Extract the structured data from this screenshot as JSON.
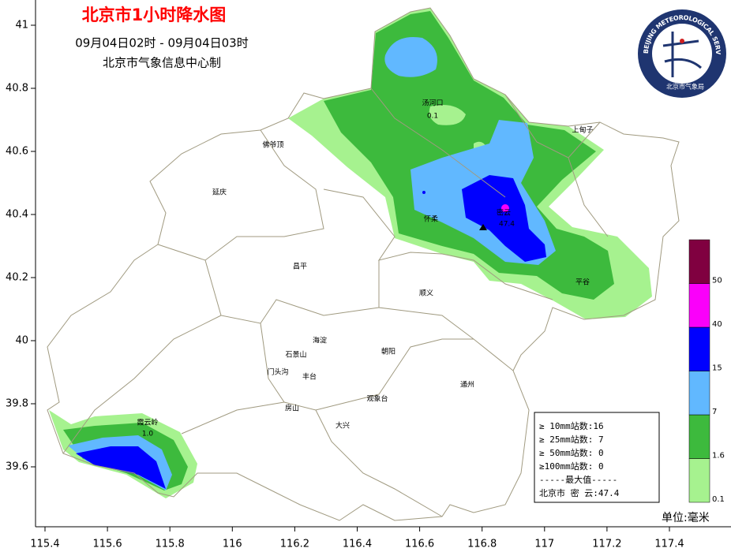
{
  "header": {
    "title": "北京市1小时降水图",
    "time_range": "09月04日02时 - 09月04日03时",
    "producer": "北京市气象信息中心制"
  },
  "logo": {
    "ring_text": "BEIJING METEOROLOGICAL SERVICE",
    "name": "北京市气象局"
  },
  "axes": {
    "lat_ticks": [
      41,
      40.8,
      40.6,
      40.4,
      40.2,
      40,
      39.8,
      39.6
    ],
    "lon_ticks": [
      115.4,
      115.6,
      115.8,
      116,
      116.2,
      116.4,
      116.6,
      116.8,
      117,
      117.2,
      117.4
    ]
  },
  "places": [
    "汤河口",
    "上甸子",
    "佛爷顶",
    "延庆",
    "怀柔",
    "密云",
    "昌平",
    "顺义",
    "平谷",
    "霞云岭",
    "海淀",
    "石景山",
    "门头沟",
    "丰台",
    "朝阳",
    "通州",
    "房山",
    "大兴",
    "观象台"
  ],
  "station_values": {
    "tanghekou": "0.1",
    "xiayunling": "1.0",
    "miyun": "47.4"
  },
  "legend": {
    "levels": [
      0.1,
      1.6,
      7,
      15,
      40,
      50
    ],
    "colors": [
      "#a6f28f",
      "#3dba3d",
      "#61b8ff",
      "#0000fe",
      "#fa00fa",
      "#800040"
    ],
    "unit": "单位:毫米"
  },
  "stats": [
    "≥ 10mm站数:16",
    "≥ 25mm站数: 7",
    "≥ 50mm站数: 0",
    "≥100mm站数: 0",
    "-----最大值-----",
    "北京市 密 云:47.4"
  ]
}
